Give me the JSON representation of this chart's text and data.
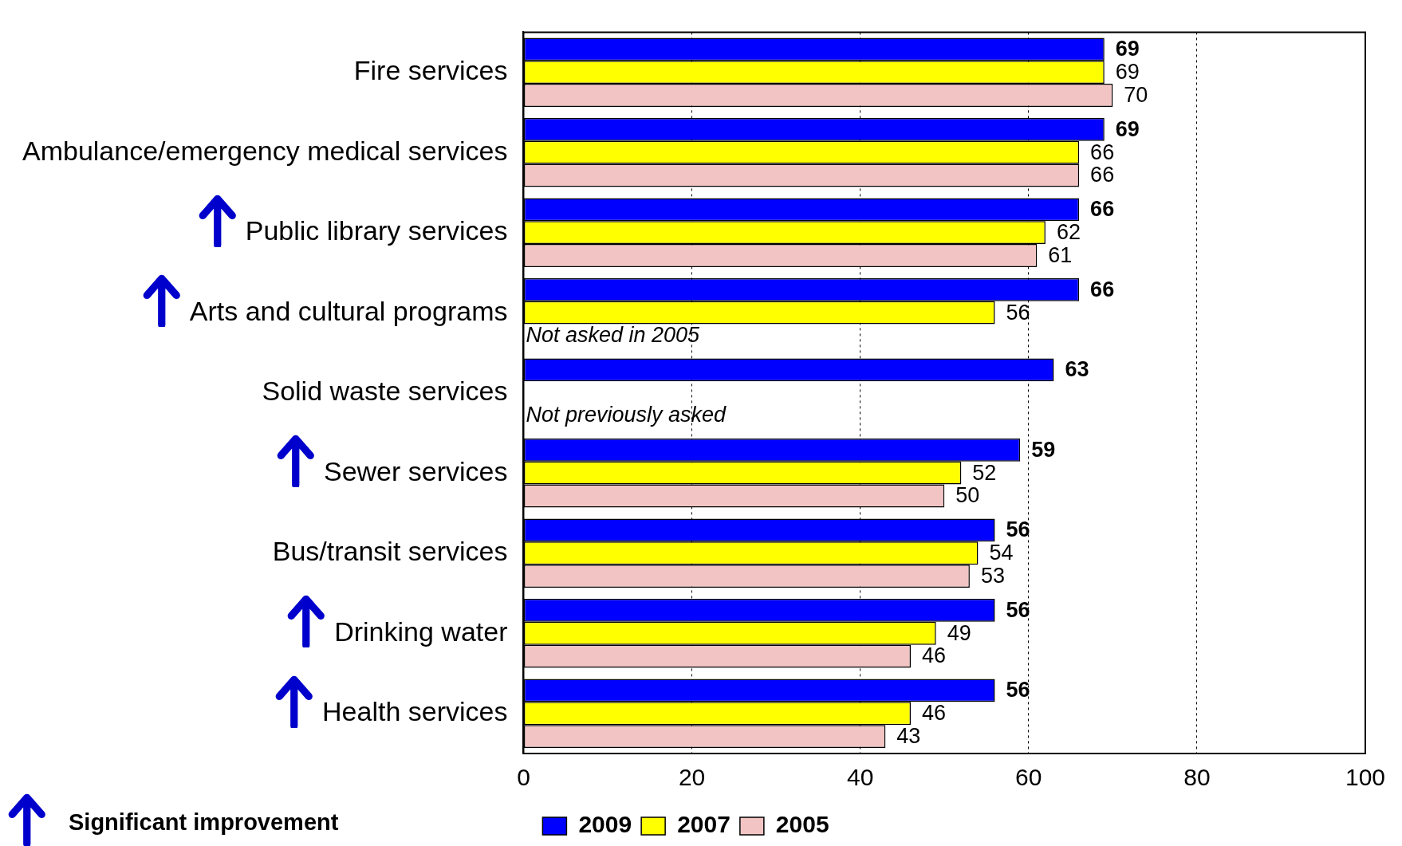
{
  "chart_data": {
    "type": "bar",
    "orientation": "horizontal",
    "categories": [
      "Fire services",
      "Ambulance/emergency medical services",
      "Public library services",
      "Arts and cultural programs",
      "Solid waste services",
      "Sewer services",
      "Bus/transit services",
      "Drinking water",
      "Health services"
    ],
    "series": [
      {
        "name": "2009",
        "color": "#0000ff",
        "values": [
          69,
          69,
          66,
          66,
          63,
          59,
          56,
          56,
          56
        ]
      },
      {
        "name": "2007",
        "color": "#ffff00",
        "values": [
          69,
          66,
          62,
          56,
          null,
          52,
          54,
          49,
          46
        ]
      },
      {
        "name": "2005",
        "color": "#f2c4c4",
        "values": [
          70,
          66,
          61,
          null,
          null,
          50,
          53,
          46,
          43
        ]
      }
    ],
    "xlim": [
      0,
      100
    ],
    "xticks": [
      0,
      20,
      40,
      60,
      80,
      100
    ],
    "grid": "x",
    "legend": "bottom",
    "data_labels": true,
    "annotations": [
      "Not asked in 2005",
      "Not previously asked",
      "Significant improvement"
    ]
  }
}
